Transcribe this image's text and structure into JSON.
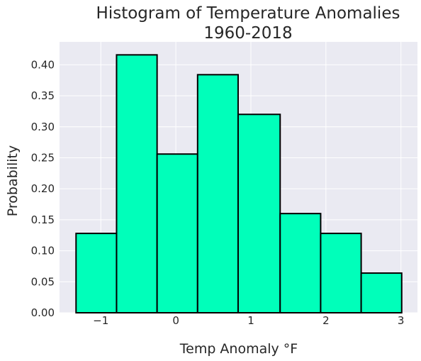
{
  "chart_data": {
    "type": "bar",
    "title_lines": [
      "Histogram of Temperature Anomalies",
      "1960-2018"
    ],
    "xlabel": "Temp Anomaly °F",
    "ylabel": "Probability",
    "bin_edges": [
      -1.33,
      -0.79,
      -0.25,
      0.29,
      0.83,
      1.39,
      1.93,
      2.47,
      3.01
    ],
    "values": [
      0.128,
      0.416,
      0.256,
      0.384,
      0.32,
      0.16,
      0.128,
      0.064
    ],
    "xlim": [
      -1.55,
      3.22
    ],
    "ylim": [
      0,
      0.437
    ],
    "xticks": [
      -1,
      0,
      1,
      2,
      3
    ],
    "xtick_labels": [
      "−1",
      "0",
      "1",
      "2",
      "3"
    ],
    "yticks": [
      0,
      0.05,
      0.1,
      0.15,
      0.2,
      0.25,
      0.3,
      0.35,
      0.4
    ],
    "ytick_labels": [
      "0.00",
      "0.05",
      "0.10",
      "0.15",
      "0.20",
      "0.25",
      "0.30",
      "0.35",
      "0.40"
    ],
    "grid": true,
    "colors": {
      "bar_fill": "#00ffba",
      "bar_edge": "#000000",
      "plot_background": "#eaeaf2",
      "grid": "#ffffff"
    }
  }
}
